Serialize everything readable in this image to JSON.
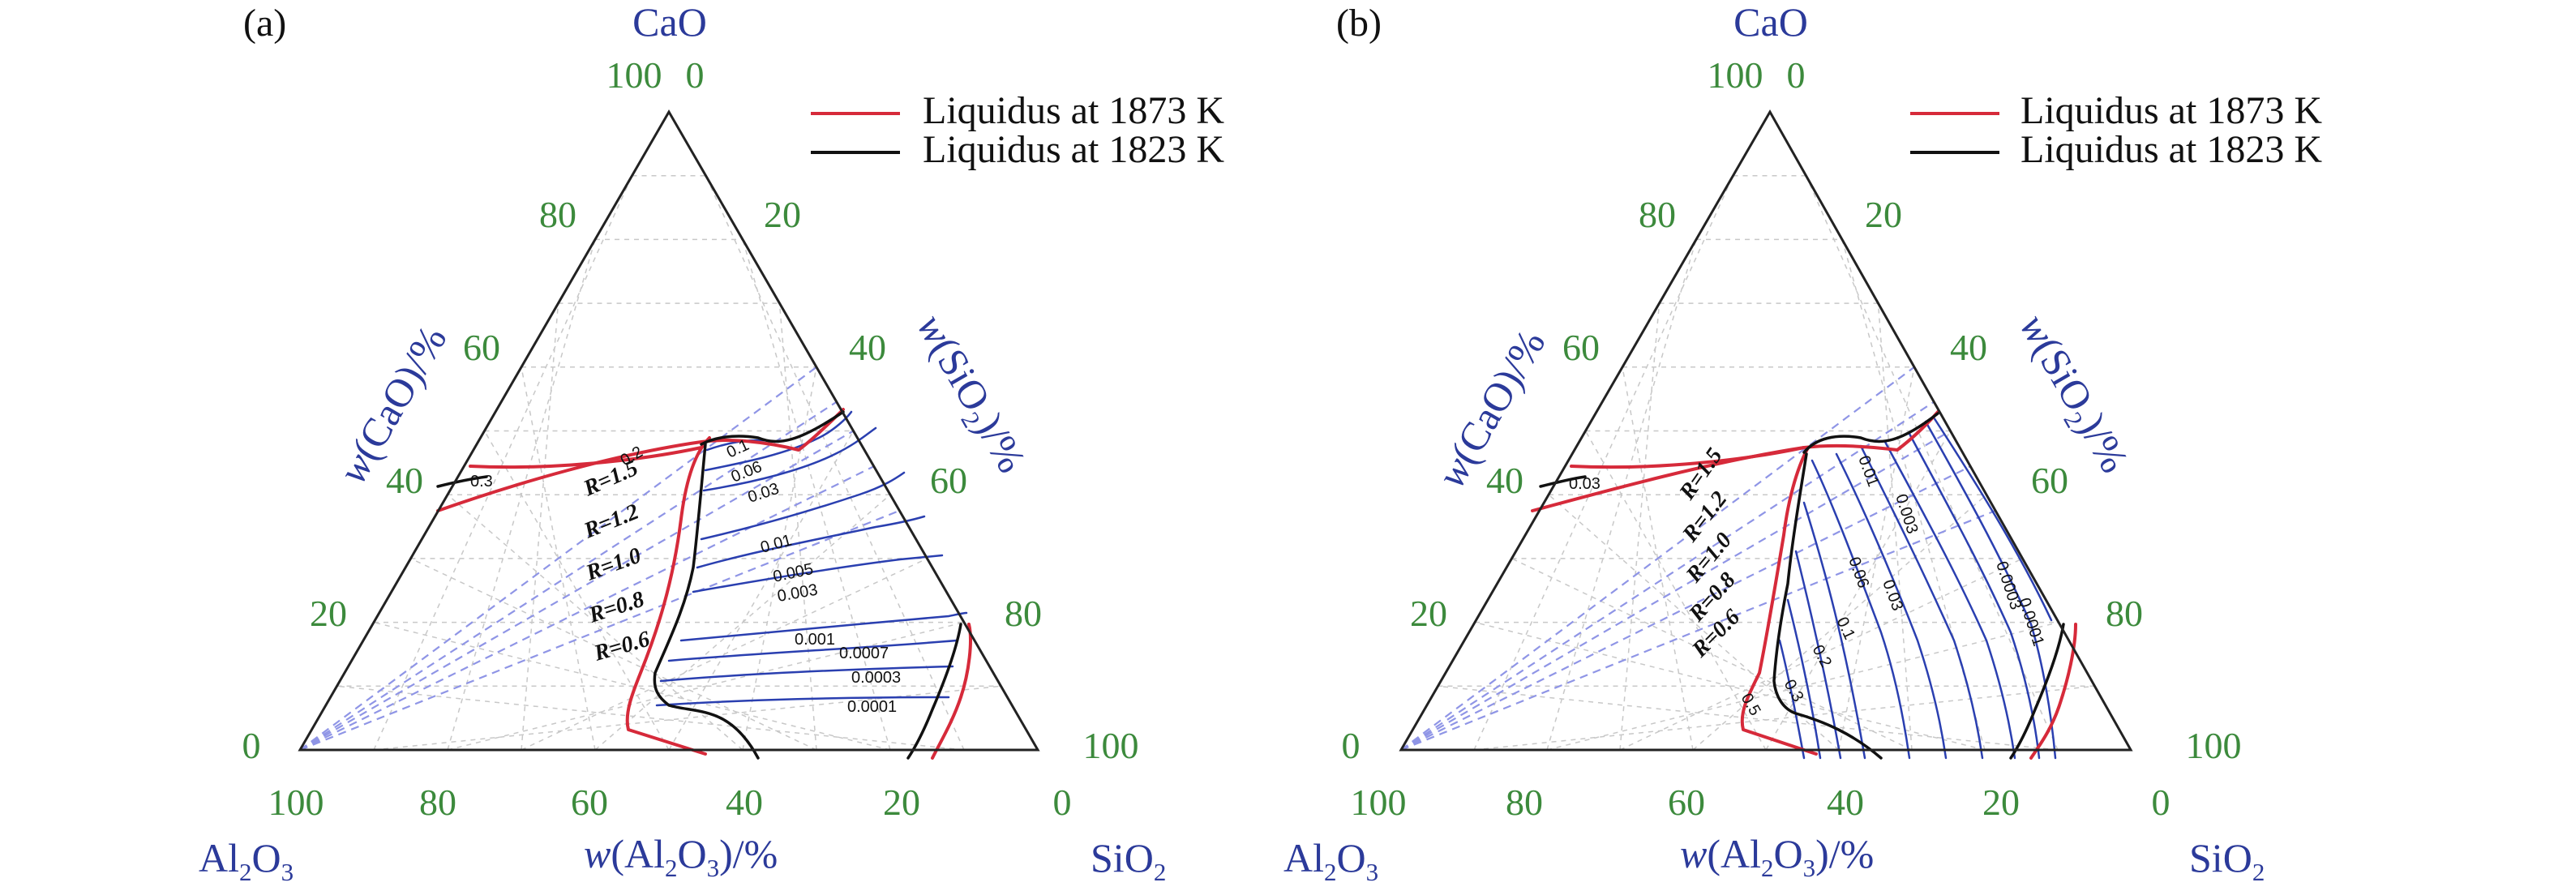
{
  "panels": [
    {
      "id": "a",
      "letter": "(a)",
      "apex_top": "CaO",
      "apex_left": "Al2O3",
      "apex_right": "SiO2",
      "axis_left_label": "w(CaO)/%",
      "axis_right_label": "w(SiO2)/%",
      "axis_bottom_label": "w(Al2O3)/%",
      "ticks_left": [
        "0",
        "20",
        "40",
        "60",
        "80",
        "100"
      ],
      "ticks_right": [
        "0",
        "20",
        "40",
        "60",
        "80",
        "100"
      ],
      "ticks_bottom": [
        "100",
        "80",
        "60",
        "40",
        "20",
        "0"
      ],
      "legend": [
        {
          "label": "Liquidus at 1873 K",
          "color": "#d62a3a"
        },
        {
          "label": "Liquidus at 1823 K",
          "color": "#111111"
        }
      ],
      "r_labels": [
        "R=1.5",
        "R=1.2",
        "R=1.0",
        "R=0.8",
        "R=0.6"
      ],
      "contour_labels": [
        "0.3",
        "0.2",
        "0.1",
        "0.06",
        "0.03",
        "0.01",
        "0.005",
        "0.003",
        "0.001",
        "0.0007",
        "0.0003",
        "0.0001"
      ]
    },
    {
      "id": "b",
      "letter": "(b)",
      "apex_top": "CaO",
      "apex_left": "Al2O3",
      "apex_right": "SiO2",
      "axis_left_label": "w(CaO)/%",
      "axis_right_label": "w(SiO2)/%",
      "axis_bottom_label": "w(Al2O3)/%",
      "ticks_left": [
        "0",
        "20",
        "40",
        "60",
        "80",
        "100"
      ],
      "ticks_right": [
        "0",
        "20",
        "40",
        "60",
        "80",
        "100"
      ],
      "ticks_bottom": [
        "100",
        "80",
        "60",
        "40",
        "20",
        "0"
      ],
      "legend": [
        {
          "label": "Liquidus at 1873 K",
          "color": "#d62a3a"
        },
        {
          "label": "Liquidus at 1823 K",
          "color": "#111111"
        }
      ],
      "r_labels": [
        "R=1.5",
        "R=1.2",
        "R=1.0",
        "R=0.8",
        "R=0.6"
      ],
      "contour_labels": [
        "0.03",
        "0.01",
        "0.003",
        "0.0003",
        "0.0001",
        "0.06",
        "0.03",
        "0.1",
        "0.2",
        "0.3",
        "0.5"
      ]
    }
  ],
  "colors": {
    "triangle": "#222222",
    "grid": "#c8c8c8",
    "contour": "#2a3fb0",
    "r_line": "#8f95e6",
    "liquidus_1873": "#d62a3a",
    "liquidus_1823": "#111111",
    "tick": "#3c8a3c",
    "label": "#2b3a9a"
  }
}
